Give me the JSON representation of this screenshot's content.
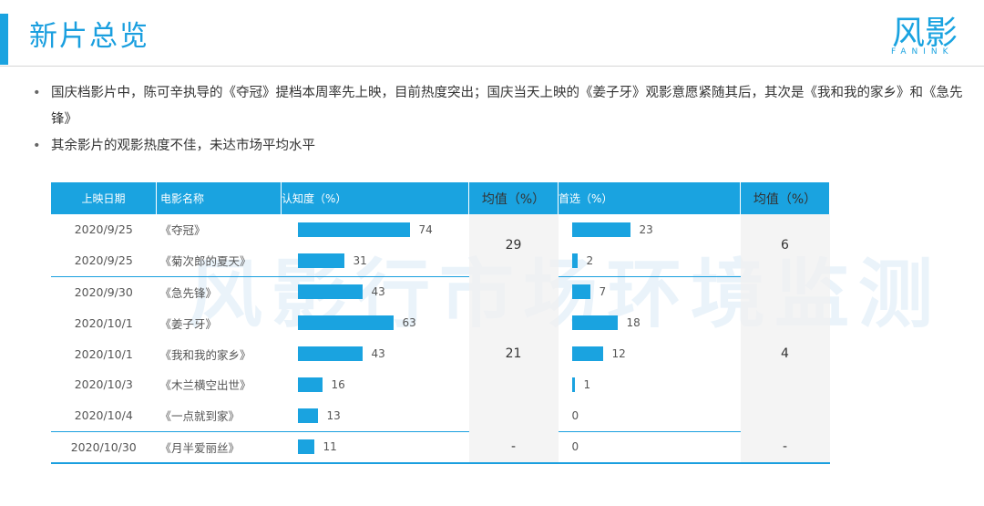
{
  "header": {
    "title": "新片总览",
    "logo_text": "风影",
    "logo_sub": "FANINK"
  },
  "bullets": [
    "国庆档影片中，陈可辛执导的《夺冠》提档本周率先上映，目前热度突出；国庆当天上映的《姜子牙》观影意愿紧随其后，其次是《我和我的家乡》和《急先锋》",
    "其余影片的观影热度不佳，未达市场平均水平"
  ],
  "watermark": "风影行市场环境监测",
  "table": {
    "headers": [
      "上映日期",
      "电影名称",
      "认知度（%）",
      "均值（%）",
      "首选（%）",
      "均值（%）"
    ],
    "rows": [
      {
        "date": "2020/9/25",
        "name": "《夺冠》",
        "awareness": 74,
        "first_choice": 23
      },
      {
        "date": "2020/9/25",
        "name": "《菊次郎的夏天》",
        "awareness": 31,
        "first_choice": 2
      },
      {
        "date": "2020/9/30",
        "name": "《急先锋》",
        "awareness": 43,
        "first_choice": 7
      },
      {
        "date": "2020/10/1",
        "name": "《姜子牙》",
        "awareness": 63,
        "first_choice": 18
      },
      {
        "date": "2020/10/1",
        "name": "《我和我的家乡》",
        "awareness": 43,
        "first_choice": 12
      },
      {
        "date": "2020/10/3",
        "name": "《木兰横空出世》",
        "awareness": 16,
        "first_choice": 1
      },
      {
        "date": "2020/10/4",
        "name": "《一点就到家》",
        "awareness": 13,
        "first_choice": 0
      },
      {
        "date": "2020/10/30",
        "name": "《月半爱丽丝》",
        "awareness": 11,
        "first_choice": 0
      }
    ],
    "group_averages": [
      {
        "awareness_avg": "29",
        "first_choice_avg": "6"
      },
      {
        "awareness_avg": "21",
        "first_choice_avg": "4"
      },
      {
        "awareness_avg": "-",
        "first_choice_avg": "-"
      }
    ]
  },
  "colors": {
    "accent": "#1aa3e0",
    "title": "#1a9fdf"
  }
}
